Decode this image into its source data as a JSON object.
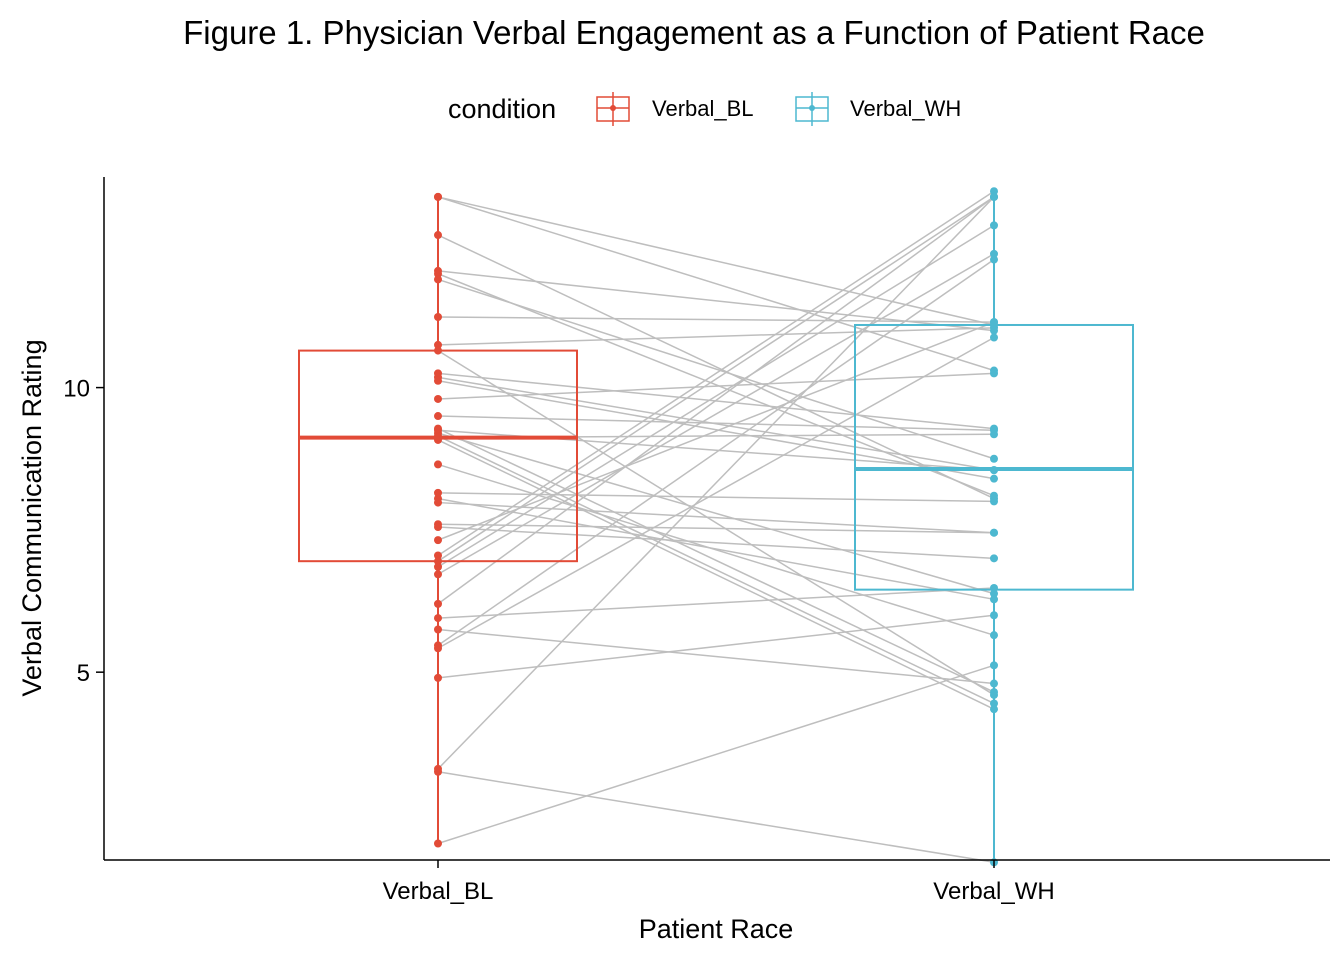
{
  "chart_data": {
    "type": "boxplot",
    "title": "Figure 1. Physician Verbal Engagement as a Function of Patient Race",
    "xlabel": "Patient Race",
    "ylabel": "Verbal Communication Rating",
    "categories": [
      "Verbal_BL",
      "Verbal_WH"
    ],
    "ylim": [
      1.7,
      13.7
    ],
    "yticks": [
      5,
      10
    ],
    "grid": false,
    "legend": {
      "title": "condition",
      "position": "top",
      "entries": [
        "Verbal_BL",
        "Verbal_WH"
      ]
    },
    "colors": {
      "Verbal_BL": "#E24B37",
      "Verbal_WH": "#4DB8D0",
      "pair_line": "#BEBEBE"
    },
    "boxes": [
      {
        "name": "Verbal_BL",
        "q1": 6.95,
        "median": 9.12,
        "q3": 10.65,
        "whisker_low": 1.99,
        "whisker_high": 13.35
      },
      {
        "name": "Verbal_WH",
        "q1": 6.45,
        "median": 8.57,
        "q3": 11.1,
        "whisker_low": 1.66,
        "whisker_high": 13.45
      }
    ],
    "pairs": [
      [
        13.35,
        11.1
      ],
      [
        13.35,
        10.3
      ],
      [
        12.68,
        8.05
      ],
      [
        12.05,
        11.0
      ],
      [
        12.0,
        8.1
      ],
      [
        11.9,
        8.75
      ],
      [
        11.24,
        11.15
      ],
      [
        10.75,
        11.05
      ],
      [
        10.65,
        4.6
      ],
      [
        10.25,
        9.28
      ],
      [
        10.18,
        8.55
      ],
      [
        10.12,
        8.4
      ],
      [
        9.8,
        10.25
      ],
      [
        9.5,
        9.25
      ],
      [
        9.28,
        4.65
      ],
      [
        9.25,
        8.55
      ],
      [
        9.2,
        6.38
      ],
      [
        9.15,
        4.45
      ],
      [
        9.12,
        9.18
      ],
      [
        9.08,
        4.35
      ],
      [
        8.65,
        5.65
      ],
      [
        8.15,
        8.0
      ],
      [
        8.05,
        6.28
      ],
      [
        7.98,
        7.45
      ],
      [
        7.6,
        7.45
      ],
      [
        7.32,
        11.15
      ],
      [
        7.05,
        13.45
      ],
      [
        6.95,
        13.35
      ],
      [
        6.85,
        12.85
      ],
      [
        6.72,
        12.35
      ],
      [
        6.2,
        13.35
      ],
      [
        5.95,
        6.48
      ],
      [
        5.47,
        12.25
      ],
      [
        5.42,
        10.88
      ],
      [
        4.9,
        6.0
      ],
      [
        3.3,
        13.35
      ],
      [
        3.25,
        1.66
      ],
      [
        1.99,
        5.12
      ],
      [
        7.55,
        7.0
      ],
      [
        5.75,
        4.8
      ]
    ]
  }
}
